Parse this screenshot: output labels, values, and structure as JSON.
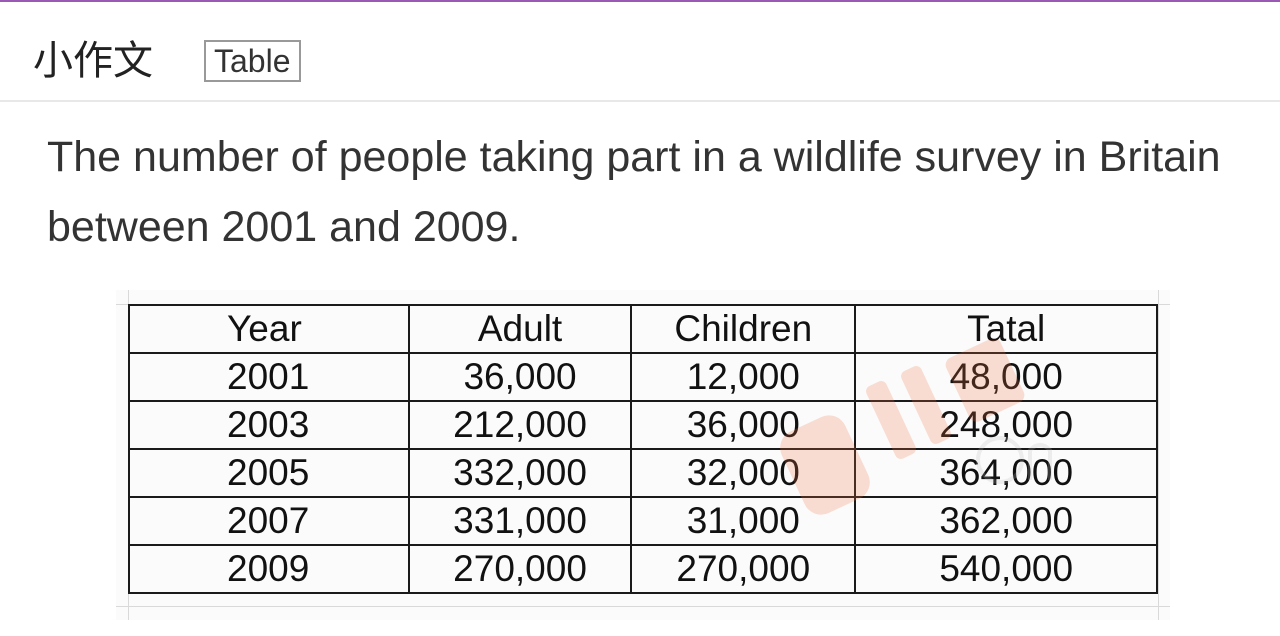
{
  "header": {
    "title": "小作文",
    "tag": "Table"
  },
  "prompt": {
    "text": "The number of people taking part in a wildlife survey in Britain between 2001 and 2009."
  },
  "table": {
    "columns": [
      "Year",
      "Adult",
      "Children",
      "Tatal"
    ],
    "rows": [
      [
        "2001",
        "36,000",
        "12,000",
        "48,000"
      ],
      [
        "2003",
        "212,000",
        "36,000",
        "248,000"
      ],
      [
        "2005",
        "332,000",
        "32,000",
        "364,000"
      ],
      [
        "2007",
        "331,000",
        "31,000",
        "362,000"
      ],
      [
        "2009",
        "270,000",
        "270,000",
        "540,000"
      ]
    ]
  },
  "colors": {
    "accent_line": "#9b59b6",
    "watermark": "#f07040"
  },
  "watermark": {
    "icon": "watermark-logo-icon"
  }
}
